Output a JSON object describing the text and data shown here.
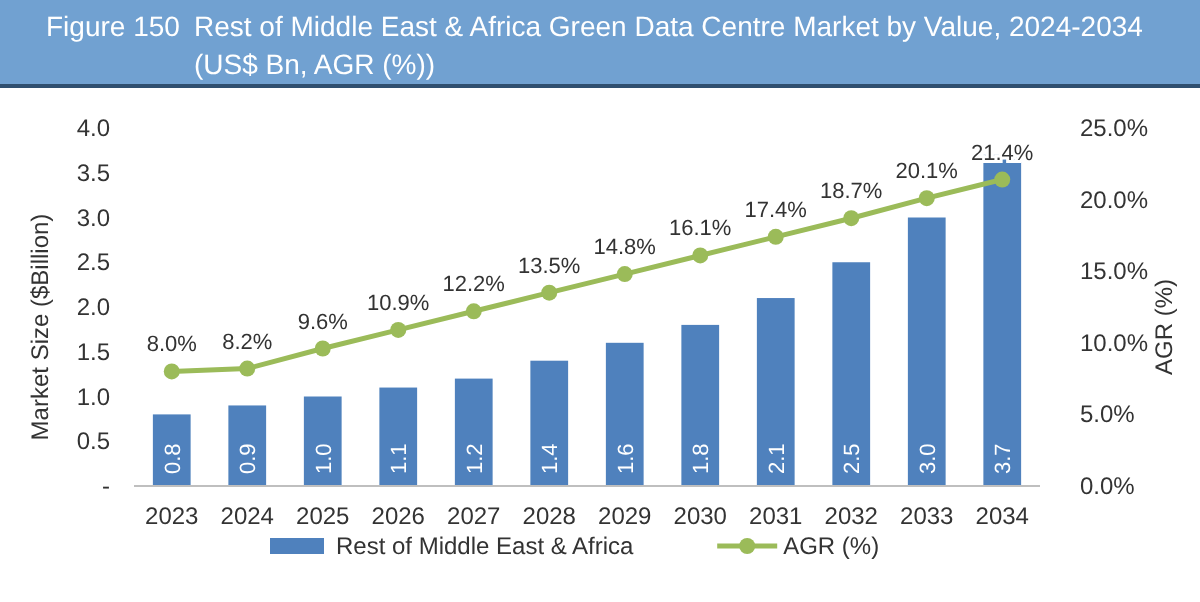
{
  "chart_data": {
    "type": "bar",
    "title": "Figure 150",
    "subtitle": "Rest of Middle East & Africa Green Data Centre Market by Value, 2024-2034 (US$ Bn, AGR (%))",
    "ylabel": "Market Size ($Billion)",
    "y2label": "AGR (%)",
    "categories": [
      "2023",
      "2024",
      "2025",
      "2026",
      "2027",
      "2028",
      "2029",
      "2030",
      "2031",
      "2032",
      "2033",
      "2034"
    ],
    "series": [
      {
        "name": "Rest of Middle East & Africa",
        "color": "#4f81bd",
        "values": [
          0.8,
          0.9,
          1.0,
          1.1,
          1.2,
          1.4,
          1.6,
          1.8,
          2.1,
          2.5,
          3.0,
          3.7
        ],
        "value_labels": [
          "0.8",
          "0.9",
          "1.0",
          "1.1",
          "1.2",
          "1.4",
          "1.6",
          "1.8",
          "2.1",
          "2.5",
          "3.0",
          "3.7"
        ]
      },
      {
        "name": "AGR (%)",
        "type": "line",
        "axis": "y2",
        "color": "#9bbb59",
        "values": [
          8.0,
          8.2,
          9.6,
          10.9,
          12.2,
          13.5,
          14.8,
          16.1,
          17.4,
          18.7,
          20.1,
          21.4
        ],
        "value_labels": [
          "8.0%",
          "8.2%",
          "9.6%",
          "10.9%",
          "12.2%",
          "13.5%",
          "14.8%",
          "16.1%",
          "17.4%",
          "18.7%",
          "20.1%",
          "21.4%"
        ]
      }
    ],
    "ylim": [
      0,
      4
    ],
    "yticks": [
      {
        "value": 0,
        "label": "-"
      },
      {
        "value": 0.5,
        "label": "0.5"
      },
      {
        "value": 1,
        "label": "1.0"
      },
      {
        "value": 1.5,
        "label": "1.5"
      },
      {
        "value": 2,
        "label": "2.0"
      },
      {
        "value": 2.5,
        "label": "2.5"
      },
      {
        "value": 3,
        "label": "3.0"
      },
      {
        "value": 3.5,
        "label": "3.5"
      },
      {
        "value": 4,
        "label": "4.0"
      }
    ],
    "y2lim": [
      0,
      25
    ],
    "y2ticks": [
      {
        "value": 0,
        "label": "0.0%"
      },
      {
        "value": 5,
        "label": "5.0%"
      },
      {
        "value": 10,
        "label": "10.0%"
      },
      {
        "value": 15,
        "label": "15.0%"
      },
      {
        "value": 20,
        "label": "20.0%"
      },
      {
        "value": 25,
        "label": "25.0%"
      }
    ],
    "marker": "circle",
    "line_style": "solid",
    "legend": "bottom",
    "grid": false
  }
}
